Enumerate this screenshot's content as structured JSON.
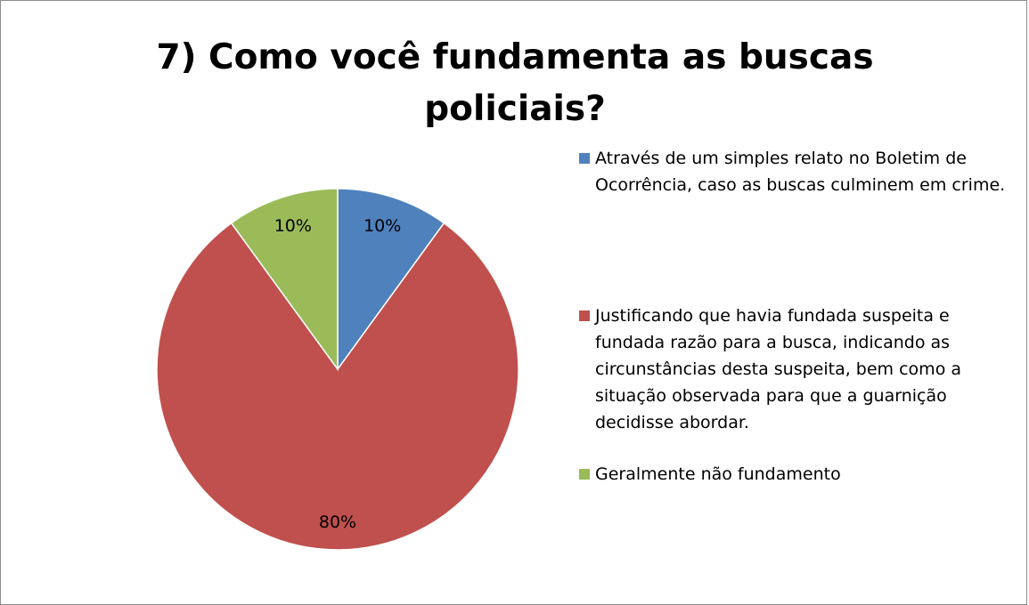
{
  "chart_data": {
    "type": "pie",
    "title": "7) Como você fundamenta as buscas policiais?",
    "categories": [
      "Através de um simples relato no Boletim de Ocorrência, caso as buscas culminem em crime.",
      "Justificando que havia fundada suspeita e fundada razão para a busca, indicando as circunstâncias desta suspeita, bem como a situação observada para que a guarnição decidisse abordar.",
      "Geralmente não fundamento"
    ],
    "values": [
      10,
      80,
      10
    ],
    "value_labels": [
      "10%",
      "80%",
      "10%"
    ],
    "colors": [
      "#4f81bd",
      "#c0504d",
      "#9bbb59"
    ],
    "legend": "right"
  }
}
